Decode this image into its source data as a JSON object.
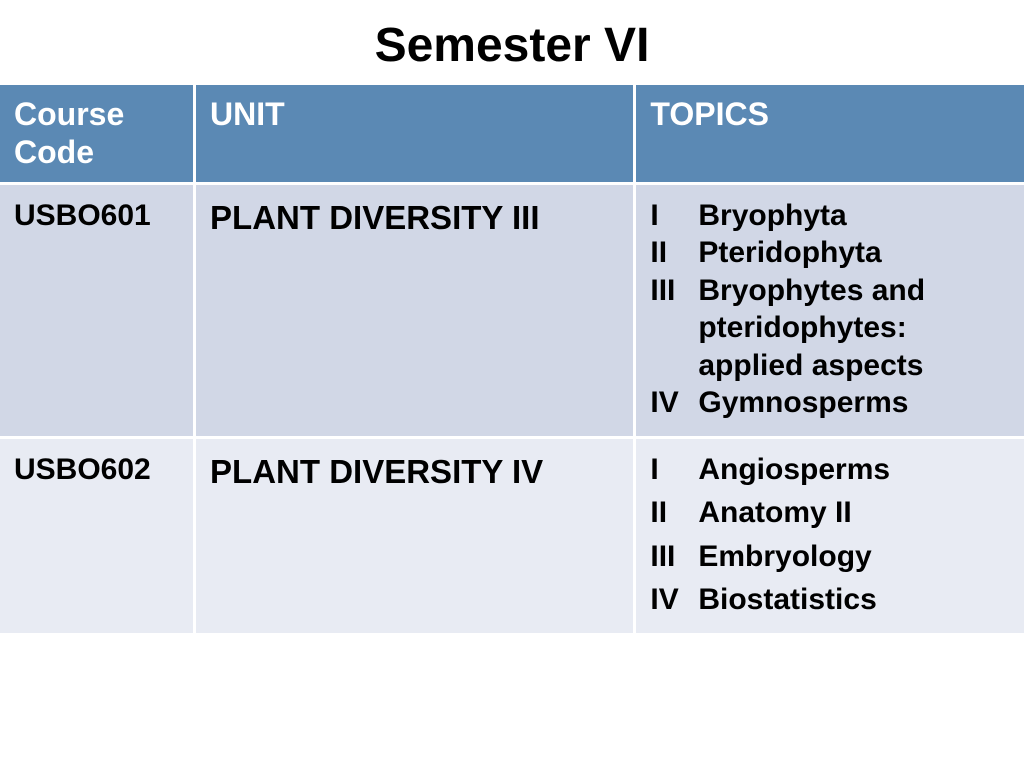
{
  "title": "Semester VI",
  "table": {
    "header_bg": "#5b89b4",
    "header_fg": "#ffffff",
    "row_bg_1": "#d1d7e6",
    "row_bg_2": "#e8ebf3",
    "col_widths": [
      "19%",
      "43%",
      "38%"
    ],
    "columns": [
      "Course Code",
      "UNIT",
      "TOPICS"
    ],
    "rows": [
      {
        "code": "USBO601",
        "unit": "PLANT DIVERSITY III",
        "topics": [
          {
            "num": "I",
            "text": "Bryophyta"
          },
          {
            "num": "II",
            "text": "Pteridophyta"
          },
          {
            "num": "III",
            "text": "Bryophytes and pteridophytes: applied aspects"
          },
          {
            "num": "IV",
            "text": "Gymnosperms"
          }
        ]
      },
      {
        "code": "USBO602",
        "unit": "PLANT DIVERSITY IV",
        "topics": [
          {
            "num": "I",
            "text": "Angiosperms"
          },
          {
            "num": "II",
            "text": "Anatomy II"
          },
          {
            "num": "III",
            "text": "Embryology"
          },
          {
            "num": "IV",
            "text": "Biostatistics"
          }
        ]
      }
    ]
  }
}
